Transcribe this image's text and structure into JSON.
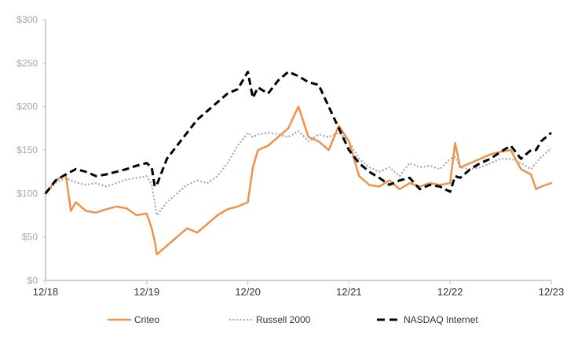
{
  "chart_data": {
    "type": "line",
    "title": "",
    "xlabel": "",
    "ylabel": "",
    "ylim": [
      0,
      300
    ],
    "grid": false,
    "legend_position": "bottom",
    "y_ticks": [
      "$0",
      "$50",
      "$100",
      "$150",
      "$200",
      "$250",
      "$300"
    ],
    "y_tick_values": [
      0,
      50,
      100,
      150,
      200,
      250,
      300
    ],
    "x_ticks": [
      "12/18",
      "12/19",
      "12/20",
      "12/21",
      "12/22",
      "12/23"
    ],
    "x": [
      0,
      0.1,
      0.2,
      0.25,
      0.3,
      0.4,
      0.5,
      0.6,
      0.7,
      0.8,
      0.9,
      1.0,
      1.05,
      1.08,
      1.1,
      1.2,
      1.3,
      1.4,
      1.5,
      1.6,
      1.7,
      1.8,
      1.9,
      2.0,
      2.05,
      2.1,
      2.2,
      2.3,
      2.4,
      2.5,
      2.6,
      2.7,
      2.8,
      2.9,
      3.0,
      3.1,
      3.2,
      3.3,
      3.4,
      3.5,
      3.6,
      3.7,
      3.8,
      3.9,
      4.0,
      4.05,
      4.1,
      4.2,
      4.3,
      4.4,
      4.5,
      4.6,
      4.7,
      4.8,
      4.85,
      4.9,
      5.0
    ],
    "series": [
      {
        "name": "Criteo",
        "color": "#f0924a",
        "style": "solid",
        "values": [
          100,
          115,
          122,
          80,
          90,
          80,
          78,
          82,
          85,
          83,
          75,
          77,
          60,
          45,
          30,
          40,
          50,
          60,
          55,
          65,
          75,
          82,
          85,
          90,
          130,
          150,
          155,
          165,
          175,
          200,
          165,
          160,
          150,
          178,
          160,
          120,
          110,
          108,
          115,
          105,
          112,
          108,
          112,
          110,
          112,
          158,
          130,
          135,
          140,
          145,
          148,
          150,
          128,
          122,
          105,
          108,
          112
        ]
      },
      {
        "name": "Russell 2000",
        "color": "#a6a6a6",
        "style": "dotted",
        "values": [
          100,
          112,
          118,
          115,
          113,
          110,
          112,
          108,
          112,
          116,
          118,
          120,
          110,
          90,
          75,
          90,
          100,
          110,
          115,
          112,
          120,
          135,
          155,
          170,
          165,
          168,
          170,
          168,
          165,
          172,
          160,
          168,
          165,
          170,
          160,
          140,
          130,
          125,
          130,
          120,
          135,
          130,
          132,
          128,
          140,
          142,
          130,
          128,
          130,
          135,
          140,
          140,
          135,
          128,
          135,
          142,
          152
        ]
      },
      {
        "name": "NASDAQ Internet",
        "color": "#000000",
        "style": "dashed",
        "values": [
          100,
          115,
          122,
          125,
          128,
          125,
          120,
          122,
          125,
          128,
          132,
          135,
          130,
          108,
          110,
          140,
          155,
          170,
          185,
          195,
          205,
          215,
          220,
          240,
          210,
          222,
          215,
          230,
          240,
          235,
          228,
          225,
          200,
          175,
          150,
          135,
          125,
          118,
          110,
          115,
          118,
          105,
          110,
          108,
          102,
          120,
          118,
          128,
          135,
          140,
          148,
          155,
          140,
          150,
          150,
          160,
          170
        ]
      }
    ]
  },
  "legend": {
    "items": [
      {
        "label": "Criteo",
        "style": "solid",
        "color": "#f0924a"
      },
      {
        "label": "Russell 2000",
        "style": "dotted",
        "color": "#a6a6a6"
      },
      {
        "label": "NASDAQ Internet",
        "style": "dashed",
        "color": "#000000"
      }
    ]
  },
  "axes": {
    "axis_color": "#bfbfbf",
    "ytick_color": "#a6a6a6",
    "xtick_color": "#333333"
  }
}
